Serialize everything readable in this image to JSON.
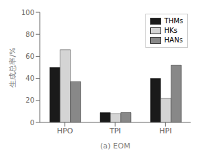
{
  "chart_data": {
    "type": "bar",
    "categories": [
      "HPO",
      "TPI",
      "HPI"
    ],
    "series": [
      {
        "name": "THMs",
        "color": "#1a1a1a",
        "values": [
          50,
          9,
          40
        ]
      },
      {
        "name": "HKs",
        "color": "#d4d4d4",
        "values": [
          66,
          8,
          22
        ]
      },
      {
        "name": "HANs",
        "color": "#888888",
        "values": [
          37,
          9,
          52
        ]
      }
    ],
    "xlabel": "(a) EOM",
    "ylabel": "生成总率/%",
    "ylim": [
      0,
      100
    ],
    "yticks": [
      0,
      20,
      40,
      60,
      80,
      100
    ],
    "grid": false,
    "legend": "upper right"
  }
}
